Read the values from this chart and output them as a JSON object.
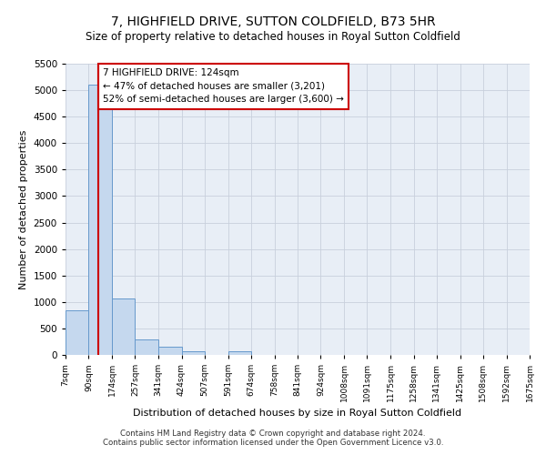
{
  "title": "7, HIGHFIELD DRIVE, SUTTON COLDFIELD, B73 5HR",
  "subtitle": "Size of property relative to detached houses in Royal Sutton Coldfield",
  "xlabel": "Distribution of detached houses by size in Royal Sutton Coldfield",
  "ylabel": "Number of detached properties",
  "footnote1": "Contains HM Land Registry data © Crown copyright and database right 2024.",
  "footnote2": "Contains public sector information licensed under the Open Government Licence v3.0.",
  "annotation_title": "7 HIGHFIELD DRIVE: 124sqm",
  "annotation_line1": "← 47% of detached houses are smaller (3,201)",
  "annotation_line2": "52% of semi-detached houses are larger (3,600) →",
  "subject_value": 124,
  "bar_edges": [
    7,
    90,
    174,
    257,
    341,
    424,
    507,
    591,
    674,
    758,
    841,
    924,
    1008,
    1091,
    1175,
    1258,
    1341,
    1425,
    1508,
    1592,
    1675
  ],
  "bar_heights": [
    850,
    5100,
    1060,
    300,
    150,
    75,
    0,
    75,
    0,
    0,
    0,
    0,
    0,
    0,
    0,
    0,
    0,
    0,
    0,
    0
  ],
  "bar_color": "#c5d8ee",
  "bar_edge_color": "#6699cc",
  "grid_color": "#c8d0dc",
  "subject_line_color": "#cc0000",
  "annotation_box_color": "#cc0000",
  "ylim": [
    0,
    5500
  ],
  "yticks": [
    0,
    500,
    1000,
    1500,
    2000,
    2500,
    3000,
    3500,
    4000,
    4500,
    5000,
    5500
  ],
  "bg_color": "#e8eef6"
}
